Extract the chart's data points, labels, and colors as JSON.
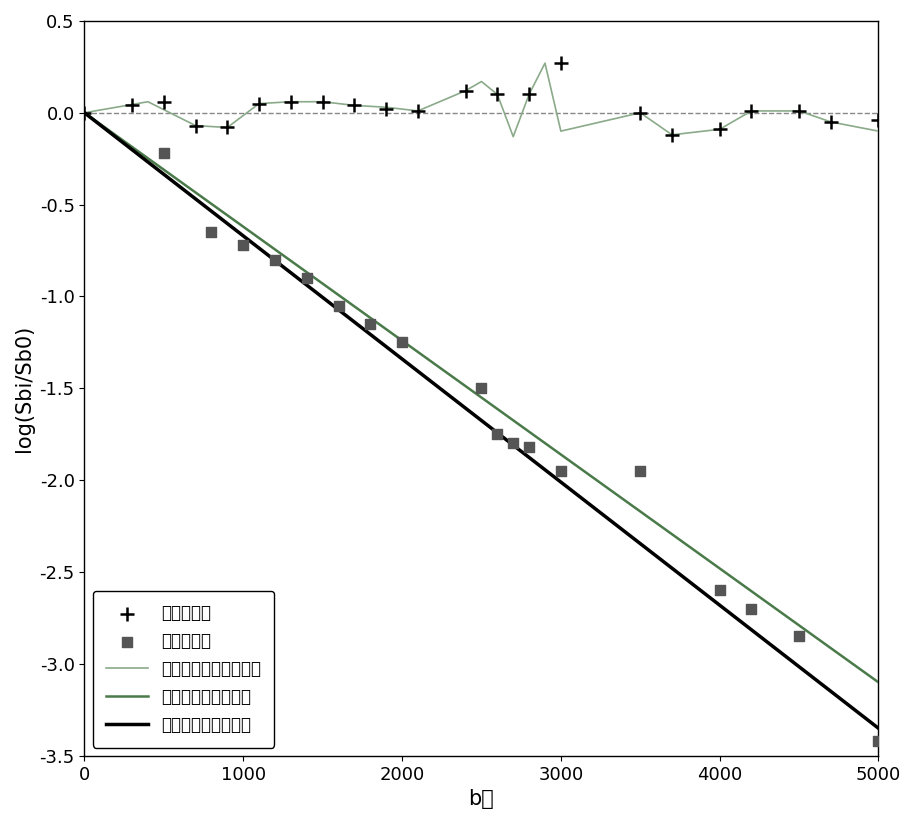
{
  "title": "",
  "xlabel": "b値",
  "ylabel": "log(Sbi/Sb0)",
  "xlim": [
    0,
    5000
  ],
  "ylim": [
    -3.5,
    0.5
  ],
  "xticks": [
    0,
    1000,
    2000,
    3000,
    4000,
    5000
  ],
  "yticks": [
    -3.5,
    -3.0,
    -2.5,
    -2.0,
    -1.5,
    -1.0,
    -0.5,
    0.0,
    0.5
  ],
  "background_color": "#ffffff",
  "data_points_x": [
    500,
    800,
    1000,
    1200,
    1400,
    1600,
    1800,
    2000,
    2500,
    2600,
    2700,
    2800,
    3000,
    3500,
    4000,
    4200,
    4500,
    5000
  ],
  "data_points_y": [
    -0.22,
    -0.65,
    -0.72,
    -0.8,
    -0.9,
    -1.05,
    -1.15,
    -1.25,
    -1.5,
    -1.75,
    -1.8,
    -1.82,
    -1.95,
    -1.95,
    -2.6,
    -2.7,
    -2.85,
    -3.42
  ],
  "residuals_x": [
    0,
    400,
    700,
    900,
    1100,
    1300,
    1500,
    1700,
    1900,
    2100,
    2400,
    2500,
    2600,
    2700,
    2800,
    2900,
    3000,
    3500,
    3700,
    4000,
    4200,
    4500,
    4700,
    5000
  ],
  "residuals_y": [
    0.0,
    0.06,
    -0.07,
    -0.08,
    0.05,
    0.06,
    0.06,
    0.04,
    0.03,
    0.01,
    0.12,
    0.17,
    0.1,
    -0.13,
    0.1,
    0.27,
    -0.1,
    0.0,
    -0.12,
    -0.09,
    0.01,
    0.01,
    -0.05,
    -0.1
  ],
  "plus_markers_x": [
    0,
    300,
    500,
    700,
    900,
    1100,
    1300,
    1500,
    1700,
    1900,
    2100,
    2400,
    2600,
    2800,
    3000,
    3500,
    3700,
    4000,
    4200,
    4500,
    4700,
    5000
  ],
  "plus_markers_y": [
    0.0,
    0.04,
    0.06,
    -0.07,
    -0.08,
    0.05,
    0.06,
    0.06,
    0.04,
    0.02,
    0.01,
    0.12,
    0.1,
    0.1,
    0.27,
    0.0,
    -0.12,
    -0.09,
    0.01,
    0.01,
    -0.05,
    -0.04
  ],
  "improved_curve_slope": -0.00062,
  "direct_curve_slope": -0.00067,
  "line_color_improved": "#4a7a4a",
  "line_color_direct": "#000000",
  "residual_line_color": "#8aaa8a",
  "marker_color": "#555555",
  "plus_color": "#000000",
  "dashed_line_color": "#888888",
  "legend_labels": [
    "实际残差値",
    "实际数据点",
    "改进方法得到的残差値",
    "改进方法得到的曲线",
    "直接拟合得到的曲线"
  ],
  "font_size_label": 15,
  "font_size_tick": 13,
  "font_size_legend": 12
}
